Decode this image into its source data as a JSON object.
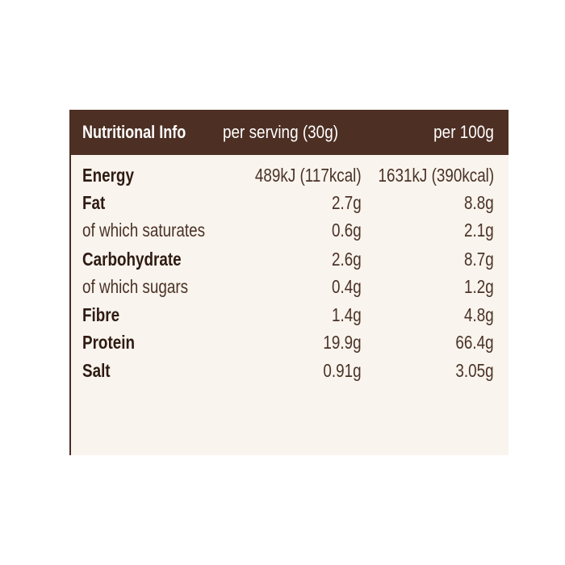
{
  "header": {
    "title": "Nutritional Info",
    "col_serving": "per serving (30g)",
    "col_100g": "per 100g"
  },
  "rows": [
    {
      "name": "Energy",
      "bold": true,
      "per_serving": "489kJ (117kcal)",
      "per_100g": "1631kJ (390kcal)"
    },
    {
      "name": "Fat",
      "bold": true,
      "per_serving": "2.7g",
      "per_100g": "8.8g"
    },
    {
      "name": "of which saturates",
      "bold": false,
      "per_serving": "0.6g",
      "per_100g": "2.1g"
    },
    {
      "name": "Carbohydrate",
      "bold": true,
      "per_serving": "2.6g",
      "per_100g": "8.7g"
    },
    {
      "name": "of which sugars",
      "bold": false,
      "per_serving": "0.4g",
      "per_100g": "1.2g"
    },
    {
      "name": "Fibre",
      "bold": true,
      "per_serving": "1.4g",
      "per_100g": "4.8g"
    },
    {
      "name": "Protein",
      "bold": true,
      "per_serving": "19.9g",
      "per_100g": "66.4g"
    },
    {
      "name": "Salt",
      "bold": true,
      "per_serving": "0.91g",
      "per_100g": "3.05g"
    }
  ],
  "colors": {
    "header_bg": "#4d2f23",
    "panel_bg": "#f9f4ee",
    "text": "#3a2418"
  }
}
